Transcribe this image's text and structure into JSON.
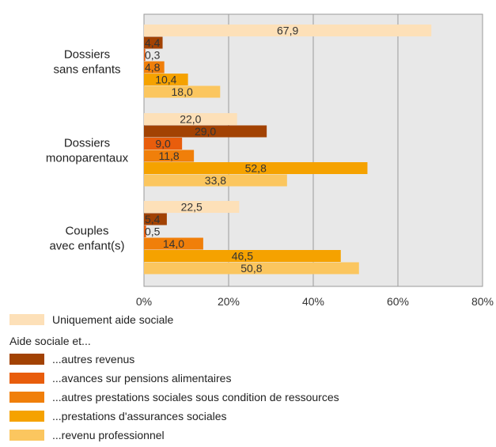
{
  "chart_data": {
    "type": "bar",
    "orientation": "horizontal",
    "categories": [
      [
        "Dossiers",
        "sans enfants"
      ],
      [
        "Dossiers",
        "monoparentaux"
      ],
      [
        "Couples",
        "avec enfant(s)"
      ]
    ],
    "series": [
      {
        "name": "Uniquement aide sociale",
        "color": "#fde0b8",
        "values": [
          67.9,
          22.0,
          22.5
        ],
        "labels": [
          "67,9",
          "22,0",
          "22,5"
        ]
      },
      {
        "name": "...autres revenus",
        "color": "#a24203",
        "values": [
          4.4,
          29.0,
          5.4
        ],
        "labels": [
          "4,4",
          "29,0",
          "5,4"
        ]
      },
      {
        "name": "...avances sur pensions alimentaires",
        "color": "#e85d0c",
        "values": [
          0.3,
          9.0,
          0.5
        ],
        "labels": [
          "0,3",
          "9,0",
          "0,5"
        ]
      },
      {
        "name": "...autres prestations sociales sous condition de ressources",
        "color": "#f07f0a",
        "values": [
          4.8,
          11.8,
          14.0
        ],
        "labels": [
          "4,8",
          "11,8",
          "14,0"
        ]
      },
      {
        "name": "...prestations d'assurances sociales",
        "color": "#f5a200",
        "values": [
          10.4,
          52.8,
          46.5
        ],
        "labels": [
          "10,4",
          "52,8",
          "46,5"
        ]
      },
      {
        "name": "...revenu professionnel",
        "color": "#fbc65f",
        "values": [
          18.0,
          33.8,
          50.8
        ],
        "labels": [
          "18,0",
          "33,8",
          "50,8"
        ]
      }
    ],
    "xlim": [
      0,
      80
    ],
    "xticks": [
      0,
      20,
      40,
      60,
      80
    ],
    "xtick_labels": [
      "0%",
      "20%",
      "40%",
      "60%",
      "80%"
    ],
    "grid": true,
    "plot_background": "#e8e8e8",
    "legend_position": "bottom"
  },
  "legend": {
    "first": "Uniquement aide sociale",
    "group_title": "Aide sociale et...",
    "items": [
      "...autres revenus",
      "...avances sur pensions alimentaires",
      "...autres prestations sociales sous condition de ressources",
      "...prestations d'assurances sociales",
      "...revenu professionnel"
    ]
  }
}
